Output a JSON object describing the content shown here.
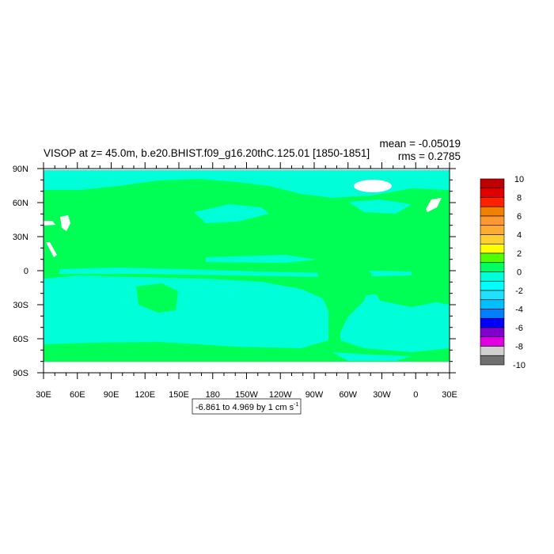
{
  "chart_data": {
    "type": "heatmap",
    "title": "VISOP at z=  45.0m, b.e20.BHIST.f09_g16.20thC.125.01 [1850-1851]",
    "stats": {
      "mean": "mean = -0.05019",
      "rms": "rms = 0.2785"
    },
    "xlabel": "",
    "ylabel": "",
    "x_ticks": [
      "30E",
      "60E",
      "90E",
      "120E",
      "150E",
      "180",
      "150W",
      "120W",
      "90W",
      "60W",
      "30W",
      "0",
      "30E"
    ],
    "y_ticks": [
      "90N",
      "60N",
      "30N",
      "0",
      "30S",
      "60S",
      "90S"
    ],
    "xlim": [
      "30E",
      "30E"
    ],
    "ylim": [
      "90S",
      "90N"
    ],
    "contour_info": "-6.861 to 4.969 by 1 cm s",
    "contour_info_exp": "-1",
    "colorbar": {
      "labels": [
        "10",
        "8",
        "6",
        "4",
        "2",
        "0",
        "-2",
        "-4",
        "-6",
        "-8",
        "-10"
      ],
      "levels_top_to_bottom": [
        10,
        9,
        8,
        7,
        6,
        5,
        4,
        3,
        2,
        1,
        0,
        -1,
        -2,
        -3,
        -4,
        -5,
        -6,
        -7,
        -8,
        -9,
        -10
      ],
      "colors_top_to_bottom": [
        "#c00000",
        "#e00000",
        "#ff2000",
        "#f08000",
        "#ff9830",
        "#ffaa30",
        "#ffd030",
        "#ffff00",
        "#50ff00",
        "#00ff60",
        "#00ffd8",
        "#00ffff",
        "#20e0ff",
        "#00c0ff",
        "#0080ff",
        "#0000ff",
        "#8000d0",
        "#e000e0",
        "#d0d0d0",
        "#707070"
      ]
    },
    "field_colors": {
      "positive_0_1": "#00ff55",
      "negative_0_1": "#00ffd8",
      "missing": "#ffffff"
    }
  }
}
